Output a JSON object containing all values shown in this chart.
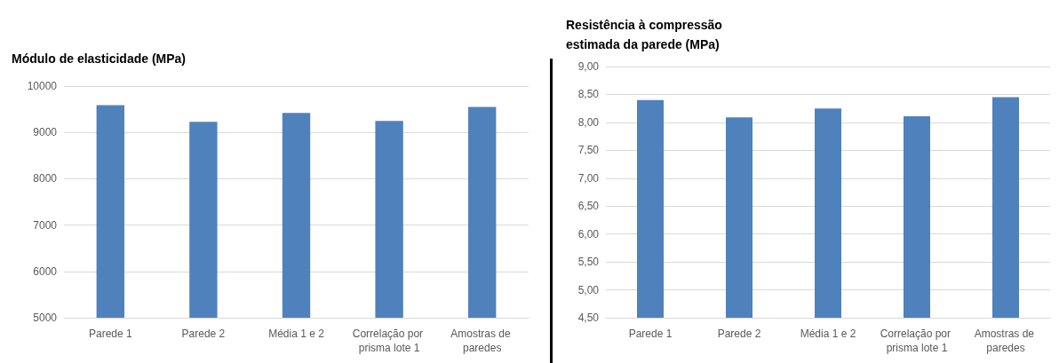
{
  "chart_data": [
    {
      "type": "bar",
      "title": "Módulo de elasticidade (MPa)",
      "categories": [
        "Parede 1",
        "Parede 2",
        "Média 1 e 2",
        "Correlação por prisma lote 1",
        "Amostras de paredes"
      ],
      "values": [
        9590,
        9230,
        9420,
        9250,
        9550
      ],
      "color": "#4f81bd",
      "ylim": [
        5000,
        10000
      ],
      "yticks": [
        5000,
        6000,
        7000,
        8000,
        9000,
        10000
      ],
      "grid": "y"
    },
    {
      "type": "bar",
      "title": "Resistência à compressão estimada da parede (MPa)",
      "categories": [
        "Parede 1",
        "Parede 2",
        "Média 1 e 2",
        "Correlação por prisma lote 1",
        "Amostras de paredes"
      ],
      "values": [
        8.4,
        8.09,
        8.25,
        8.11,
        8.45
      ],
      "color": "#4f81bd",
      "ylim": [
        4.5,
        9
      ],
      "yticks": [
        {
          "value": 4.5,
          "label": "4,50"
        },
        {
          "value": 5,
          "label": "5,00"
        },
        {
          "value": 5.5,
          "label": "5,50"
        },
        {
          "value": 6,
          "label": "6,00"
        },
        {
          "value": 6.5,
          "label": "6,50"
        },
        {
          "value": 7,
          "label": "7,00"
        },
        {
          "value": 7.5,
          "label": "7,50"
        },
        {
          "value": 8,
          "label": "8,00"
        },
        {
          "value": 8.5,
          "label": "8,50"
        },
        {
          "value": 9,
          "label": "9,00"
        }
      ],
      "grid": "y"
    }
  ]
}
